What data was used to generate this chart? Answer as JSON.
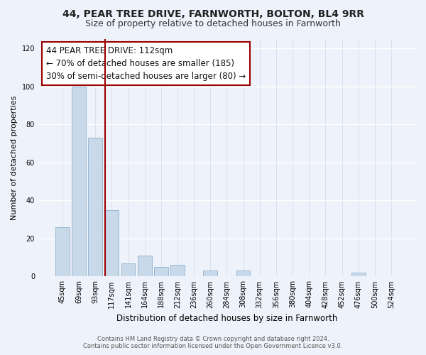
{
  "title": "44, PEAR TREE DRIVE, FARNWORTH, BOLTON, BL4 9RR",
  "subtitle": "Size of property relative to detached houses in Farnworth",
  "xlabel": "Distribution of detached houses by size in Farnworth",
  "ylabel": "Number of detached properties",
  "bar_labels": [
    "45sqm",
    "69sqm",
    "93sqm",
    "117sqm",
    "141sqm",
    "164sqm",
    "188sqm",
    "212sqm",
    "236sqm",
    "260sqm",
    "284sqm",
    "308sqm",
    "332sqm",
    "356sqm",
    "380sqm",
    "404sqm",
    "428sqm",
    "452sqm",
    "476sqm",
    "500sqm",
    "524sqm"
  ],
  "bar_values": [
    26,
    100,
    73,
    35,
    7,
    11,
    5,
    6,
    0,
    3,
    0,
    3,
    0,
    0,
    0,
    0,
    0,
    0,
    2,
    0,
    0
  ],
  "bar_color": "#c8daea",
  "bar_edge_color": "#9ab8d0",
  "ylim": [
    0,
    125
  ],
  "yticks": [
    0,
    20,
    40,
    60,
    80,
    100,
    120
  ],
  "property_line_color": "#990000",
  "annotation_title": "44 PEAR TREE DRIVE: 112sqm",
  "annotation_line1": "← 70% of detached houses are smaller (185)",
  "annotation_line2": "30% of semi-detached houses are larger (80) →",
  "footer_line1": "Contains HM Land Registry data © Crown copyright and database right 2024.",
  "footer_line2": "Contains public sector information licensed under the Open Government Licence v3.0.",
  "background_color": "#eef2fa",
  "grid_color": "#d0d8e8",
  "title_fontsize": 10,
  "subtitle_fontsize": 9
}
